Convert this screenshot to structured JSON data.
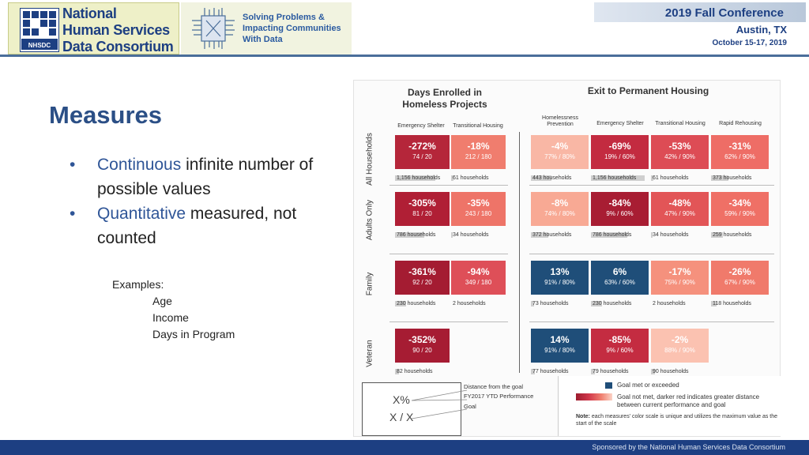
{
  "header": {
    "logo_lines": [
      "National",
      "Human Services",
      "Data Consortium"
    ],
    "logo_badge": "NHSDC",
    "tagline_lines": [
      "Solving Problems &",
      "Impacting Communities",
      "With Data"
    ],
    "conference_title": "2019 Fall Conference",
    "conference_city": "Austin, TX",
    "conference_dates": "October 15-17, 2019"
  },
  "slide": {
    "title": "Measures",
    "bullets": [
      {
        "highlight": "Continuous",
        "text": " infinite number of possible values"
      },
      {
        "highlight": "Quantitative",
        "text": " measured, not counted"
      }
    ],
    "examples_label": "Examples:",
    "examples": [
      "Age",
      "Income",
      "Days in Program"
    ]
  },
  "figure": {
    "days_header": "Days Enrolled in Homeless Projects",
    "exit_header": "Exit to Permanent Housing",
    "days_columns": [
      "Emergency Shelter",
      "Transitional Housing"
    ],
    "exit_columns": [
      "Homelessness Prevention",
      "Emergency Shelter",
      "Transitional Housing",
      "Rapid Rehousing"
    ],
    "rows": [
      {
        "label": "All Households",
        "days": [
          {
            "pct": "-272%",
            "sub": "74 / 20",
            "hh": "1,156 households",
            "color": "#b5263a",
            "fill": 0.75
          },
          {
            "pct": "-18%",
            "sub": "212 / 180",
            "hh": "61 households",
            "color": "#f07d6e",
            "fill": 0.05
          }
        ],
        "exit": [
          {
            "pct": "-4%",
            "sub": "77% / 80%",
            "hh": "443 households",
            "color": "#f9b7a5",
            "fill": 0.38
          },
          {
            "pct": "-69%",
            "sub": "19% / 60%",
            "hh": "1,156 households",
            "color": "#c32b40",
            "fill": 1.0
          },
          {
            "pct": "-53%",
            "sub": "42% / 90%",
            "hh": "61 households",
            "color": "#dd4c55",
            "fill": 0.05
          },
          {
            "pct": "-31%",
            "sub": "62% / 90%",
            "hh": "373 households",
            "color": "#ee6d66",
            "fill": 0.32
          }
        ]
      },
      {
        "label": "Adults Only",
        "days": [
          {
            "pct": "-305%",
            "sub": "81 / 20",
            "hh": "786 households",
            "color": "#b01f35",
            "fill": 0.55
          },
          {
            "pct": "-35%",
            "sub": "243 / 180",
            "hh": "34 households",
            "color": "#ee7468",
            "fill": 0.03
          }
        ],
        "exit": [
          {
            "pct": "-8%",
            "sub": "74% / 80%",
            "hh": "372 households",
            "color": "#f8a994",
            "fill": 0.32
          },
          {
            "pct": "-84%",
            "sub": "9% / 60%",
            "hh": "786 households",
            "color": "#a81d33",
            "fill": 0.68
          },
          {
            "pct": "-48%",
            "sub": "47% / 90%",
            "hh": "34 households",
            "color": "#e25557",
            "fill": 0.03
          },
          {
            "pct": "-34%",
            "sub": "59% / 90%",
            "hh": "259 households",
            "color": "#ef7066",
            "fill": 0.22
          }
        ]
      },
      {
        "label": "Family",
        "days": [
          {
            "pct": "-361%",
            "sub": "92 / 20",
            "hh": "230 households",
            "color": "#a41c32",
            "fill": 0.2
          },
          {
            "pct": "-94%",
            "sub": "349 / 180",
            "hh": "2 households",
            "color": "#de4f58",
            "fill": 0.0
          }
        ],
        "exit": [
          {
            "pct": "13%",
            "sub": "91% / 80%",
            "hh": "73 households",
            "color": "#1f4e79",
            "fill": 0.06
          },
          {
            "pct": "6%",
            "sub": "63% / 60%",
            "hh": "230 households",
            "color": "#1f4e79",
            "fill": 0.2
          },
          {
            "pct": "-17%",
            "sub": "75% / 90%",
            "hh": "2 households",
            "color": "#f5917d",
            "fill": 0.0
          },
          {
            "pct": "-26%",
            "sub": "67% / 90%",
            "hh": "118 households",
            "color": "#f07a6b",
            "fill": 0.1
          }
        ]
      },
      {
        "label": "Veteran",
        "days": [
          {
            "pct": "-352%",
            "sub": "90 / 20",
            "hh": "82 households",
            "color": "#a61c33",
            "fill": 0.07
          }
        ],
        "exit": [
          {
            "pct": "14%",
            "sub": "91% / 80%",
            "hh": "77 households",
            "color": "#1f4e79",
            "fill": 0.07
          },
          {
            "pct": "-85%",
            "sub": "9% / 60%",
            "hh": "79 households",
            "color": "#c42c41",
            "fill": 0.07
          },
          {
            "pct": "-2%",
            "sub": "88% / 90%",
            "hh": "90 households",
            "color": "#fbc2b1",
            "fill": 0.08
          }
        ]
      }
    ],
    "legend": {
      "sample_pct": "X%",
      "sample_ratio": "X / X",
      "distance_label": "Distance from the goal",
      "ytd_label": "FY2017 YTD Performance",
      "goal_label": "Goal",
      "met_label": "Goal met or exceeded",
      "not_met_label": "Goal not met, darker red indicates greater distance between current performance and goal",
      "note_bold": "Note:",
      "note_text": " each measures' color scale is unique and utilizes the maximum value as the start of the scale"
    }
  },
  "footer": {
    "text": "Sponsored by the National Human Services Data Consortium"
  },
  "colors": {
    "title_blue": "#2b4f86",
    "accent_blue": "#2f5597",
    "goal_met_blue": "#1f4e79",
    "footer_navy": "#1d3f82"
  }
}
